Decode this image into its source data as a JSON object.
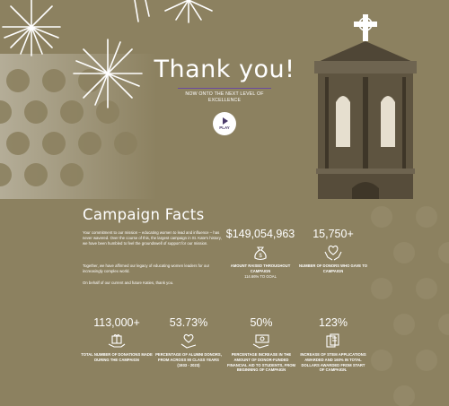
{
  "hero": {
    "title": "Thank you!",
    "subtitle": "NOW ONTO THE NEXT LEVEL OF EXCELLENCE",
    "play_label": "PLAY"
  },
  "campaign": {
    "title": "Campaign Facts",
    "paragraphs": [
      "Your commitment to our mission – educating women to lead and influence – has never wavered. Over the course of this, the largest campaign in St. Kate's history, we have been humbled to feel the groundswell of support for our mission.",
      "Together, we have affirmed our legacy of educating women leaders for our increasingly complex world.",
      "On behalf of our current and future Katies, thank you."
    ]
  },
  "stats_top": [
    {
      "value": "$149,054,963",
      "icon": "money-bag-icon",
      "label": "AMOUNT RAISED THROUGHOUT CAMPAIGN",
      "note": "114.66% TO GOAL"
    },
    {
      "value": "15,750+",
      "icon": "hands-heart-icon",
      "label": "NUMBER OF DONORS WHO GAVE TO CAMPAIGN",
      "note": ""
    }
  ],
  "stats_bottom": [
    {
      "value": "113,000+",
      "icon": "gift-hand-icon",
      "label": "TOTAL NUMBER OF DONATIONS MADE DURING THE CAMPAIGN"
    },
    {
      "value": "53.73%",
      "icon": "heart-hand-icon",
      "label": "PERCENTAGE OF ALUMNI DONORS, FROM ACROSS 90 CLASS YEARS (1933 - 2023)"
    },
    {
      "value": "50%",
      "icon": "cash-hand-icon",
      "label": "PERCENTAGE INCREASE IN THE AMOUNT OF DONOR-FUNDED FINANCIAL AID TO STUDENTS, FROM BEGINNING OF CAMPAIGN"
    },
    {
      "value": "123%",
      "icon": "documents-icon",
      "label": "INCREASE OF STEM APPLICATIONS AWARDED AND 160% IN TOTAL DOLLARS AWARDED FROM START OF CAMPAIGN."
    }
  ],
  "colors": {
    "background": "#8c8160",
    "accent": "#6a4aa0",
    "tower": "#5e5440"
  }
}
